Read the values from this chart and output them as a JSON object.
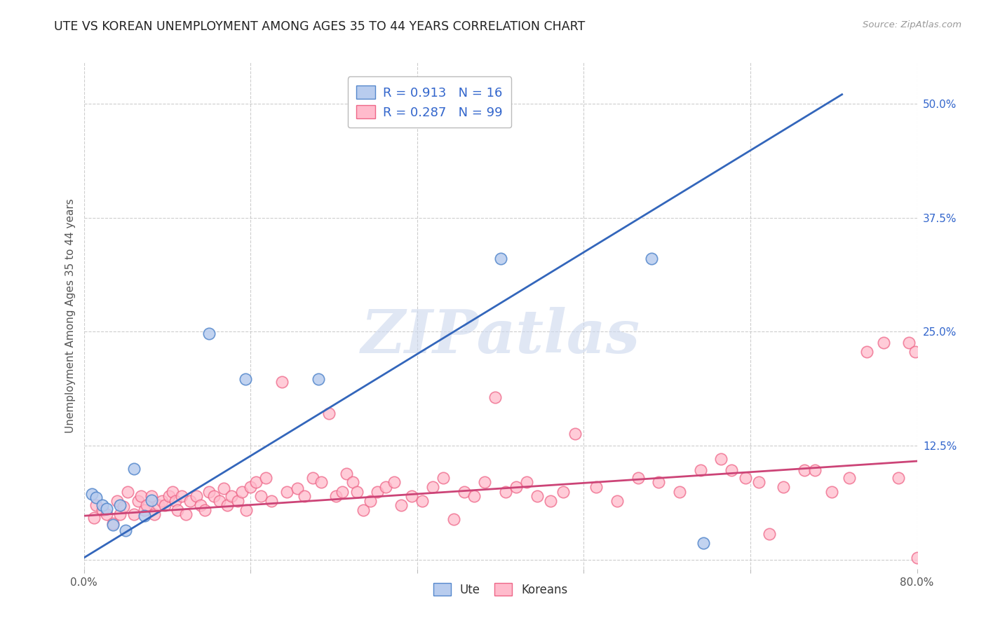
{
  "title": "UTE VS KOREAN UNEMPLOYMENT AMONG AGES 35 TO 44 YEARS CORRELATION CHART",
  "source": "Source: ZipAtlas.com",
  "ylabel": "Unemployment Among Ages 35 to 44 years",
  "xlim": [
    0.0,
    0.8
  ],
  "ylim": [
    -0.01,
    0.545
  ],
  "xtick_positions": [
    0.0,
    0.16,
    0.32,
    0.48,
    0.64,
    0.8
  ],
  "xticklabels": [
    "0.0%",
    "",
    "",
    "",
    "",
    "80.0%"
  ],
  "ytick_positions": [
    0.0,
    0.125,
    0.25,
    0.375,
    0.5
  ],
  "ytick_labels_right": [
    "",
    "12.5%",
    "25.0%",
    "37.5%",
    "50.0%"
  ],
  "background_color": "#ffffff",
  "grid_color": "#c8c8c8",
  "ute_face": "#b8ccee",
  "ute_edge": "#5588cc",
  "korean_face": "#ffbbcc",
  "korean_edge": "#ee6688",
  "ute_line_color": "#3366bb",
  "korean_line_color": "#cc4477",
  "legend_text_color": "#3366cc",
  "ute_R": "0.913",
  "ute_N": "16",
  "korean_R": "0.287",
  "korean_N": "99",
  "legend_label_ute": "Ute",
  "legend_label_korean": "Koreans",
  "watermark_text": "ZIPatlas",
  "watermark_color": "#ccd8ee",
  "ute_x": [
    0.008,
    0.012,
    0.018,
    0.022,
    0.028,
    0.035,
    0.04,
    0.048,
    0.058,
    0.065,
    0.12,
    0.155,
    0.225,
    0.4,
    0.545,
    0.595
  ],
  "ute_y": [
    0.072,
    0.068,
    0.06,
    0.056,
    0.038,
    0.06,
    0.032,
    0.1,
    0.048,
    0.065,
    0.248,
    0.198,
    0.198,
    0.33,
    0.33,
    0.018
  ],
  "korean_x": [
    0.01,
    0.012,
    0.018,
    0.022,
    0.028,
    0.032,
    0.035,
    0.038,
    0.042,
    0.048,
    0.052,
    0.055,
    0.058,
    0.06,
    0.065,
    0.068,
    0.072,
    0.075,
    0.078,
    0.082,
    0.085,
    0.088,
    0.09,
    0.094,
    0.098,
    0.102,
    0.108,
    0.112,
    0.116,
    0.12,
    0.125,
    0.13,
    0.134,
    0.138,
    0.142,
    0.148,
    0.152,
    0.156,
    0.16,
    0.165,
    0.17,
    0.175,
    0.18,
    0.19,
    0.195,
    0.205,
    0.212,
    0.22,
    0.228,
    0.235,
    0.242,
    0.248,
    0.252,
    0.258,
    0.262,
    0.268,
    0.275,
    0.282,
    0.29,
    0.298,
    0.305,
    0.315,
    0.325,
    0.335,
    0.345,
    0.355,
    0.365,
    0.375,
    0.385,
    0.395,
    0.405,
    0.415,
    0.425,
    0.435,
    0.448,
    0.46,
    0.472,
    0.492,
    0.512,
    0.532,
    0.552,
    0.572,
    0.592,
    0.612,
    0.622,
    0.635,
    0.648,
    0.658,
    0.672,
    0.692,
    0.702,
    0.718,
    0.735,
    0.752,
    0.768,
    0.782,
    0.792,
    0.798,
    0.8
  ],
  "korean_y": [
    0.046,
    0.06,
    0.054,
    0.05,
    0.04,
    0.064,
    0.05,
    0.058,
    0.074,
    0.05,
    0.064,
    0.07,
    0.054,
    0.06,
    0.07,
    0.05,
    0.06,
    0.064,
    0.06,
    0.07,
    0.074,
    0.064,
    0.054,
    0.07,
    0.05,
    0.064,
    0.07,
    0.06,
    0.054,
    0.074,
    0.07,
    0.064,
    0.078,
    0.06,
    0.07,
    0.064,
    0.074,
    0.054,
    0.08,
    0.085,
    0.07,
    0.09,
    0.064,
    0.195,
    0.074,
    0.078,
    0.07,
    0.09,
    0.085,
    0.16,
    0.07,
    0.074,
    0.094,
    0.085,
    0.074,
    0.054,
    0.064,
    0.074,
    0.08,
    0.085,
    0.06,
    0.07,
    0.064,
    0.08,
    0.09,
    0.044,
    0.074,
    0.07,
    0.085,
    0.178,
    0.074,
    0.08,
    0.085,
    0.07,
    0.064,
    0.074,
    0.138,
    0.08,
    0.064,
    0.09,
    0.085,
    0.074,
    0.098,
    0.11,
    0.098,
    0.09,
    0.085,
    0.028,
    0.08,
    0.098,
    0.098,
    0.074,
    0.09,
    0.228,
    0.238,
    0.09,
    0.238,
    0.228,
    0.002
  ],
  "ute_line_x0": 0.0,
  "ute_line_y0": 0.002,
  "ute_line_x1": 0.728,
  "ute_line_y1": 0.51,
  "korean_line_x0": 0.0,
  "korean_line_y0": 0.048,
  "korean_line_x1": 0.8,
  "korean_line_y1": 0.108
}
